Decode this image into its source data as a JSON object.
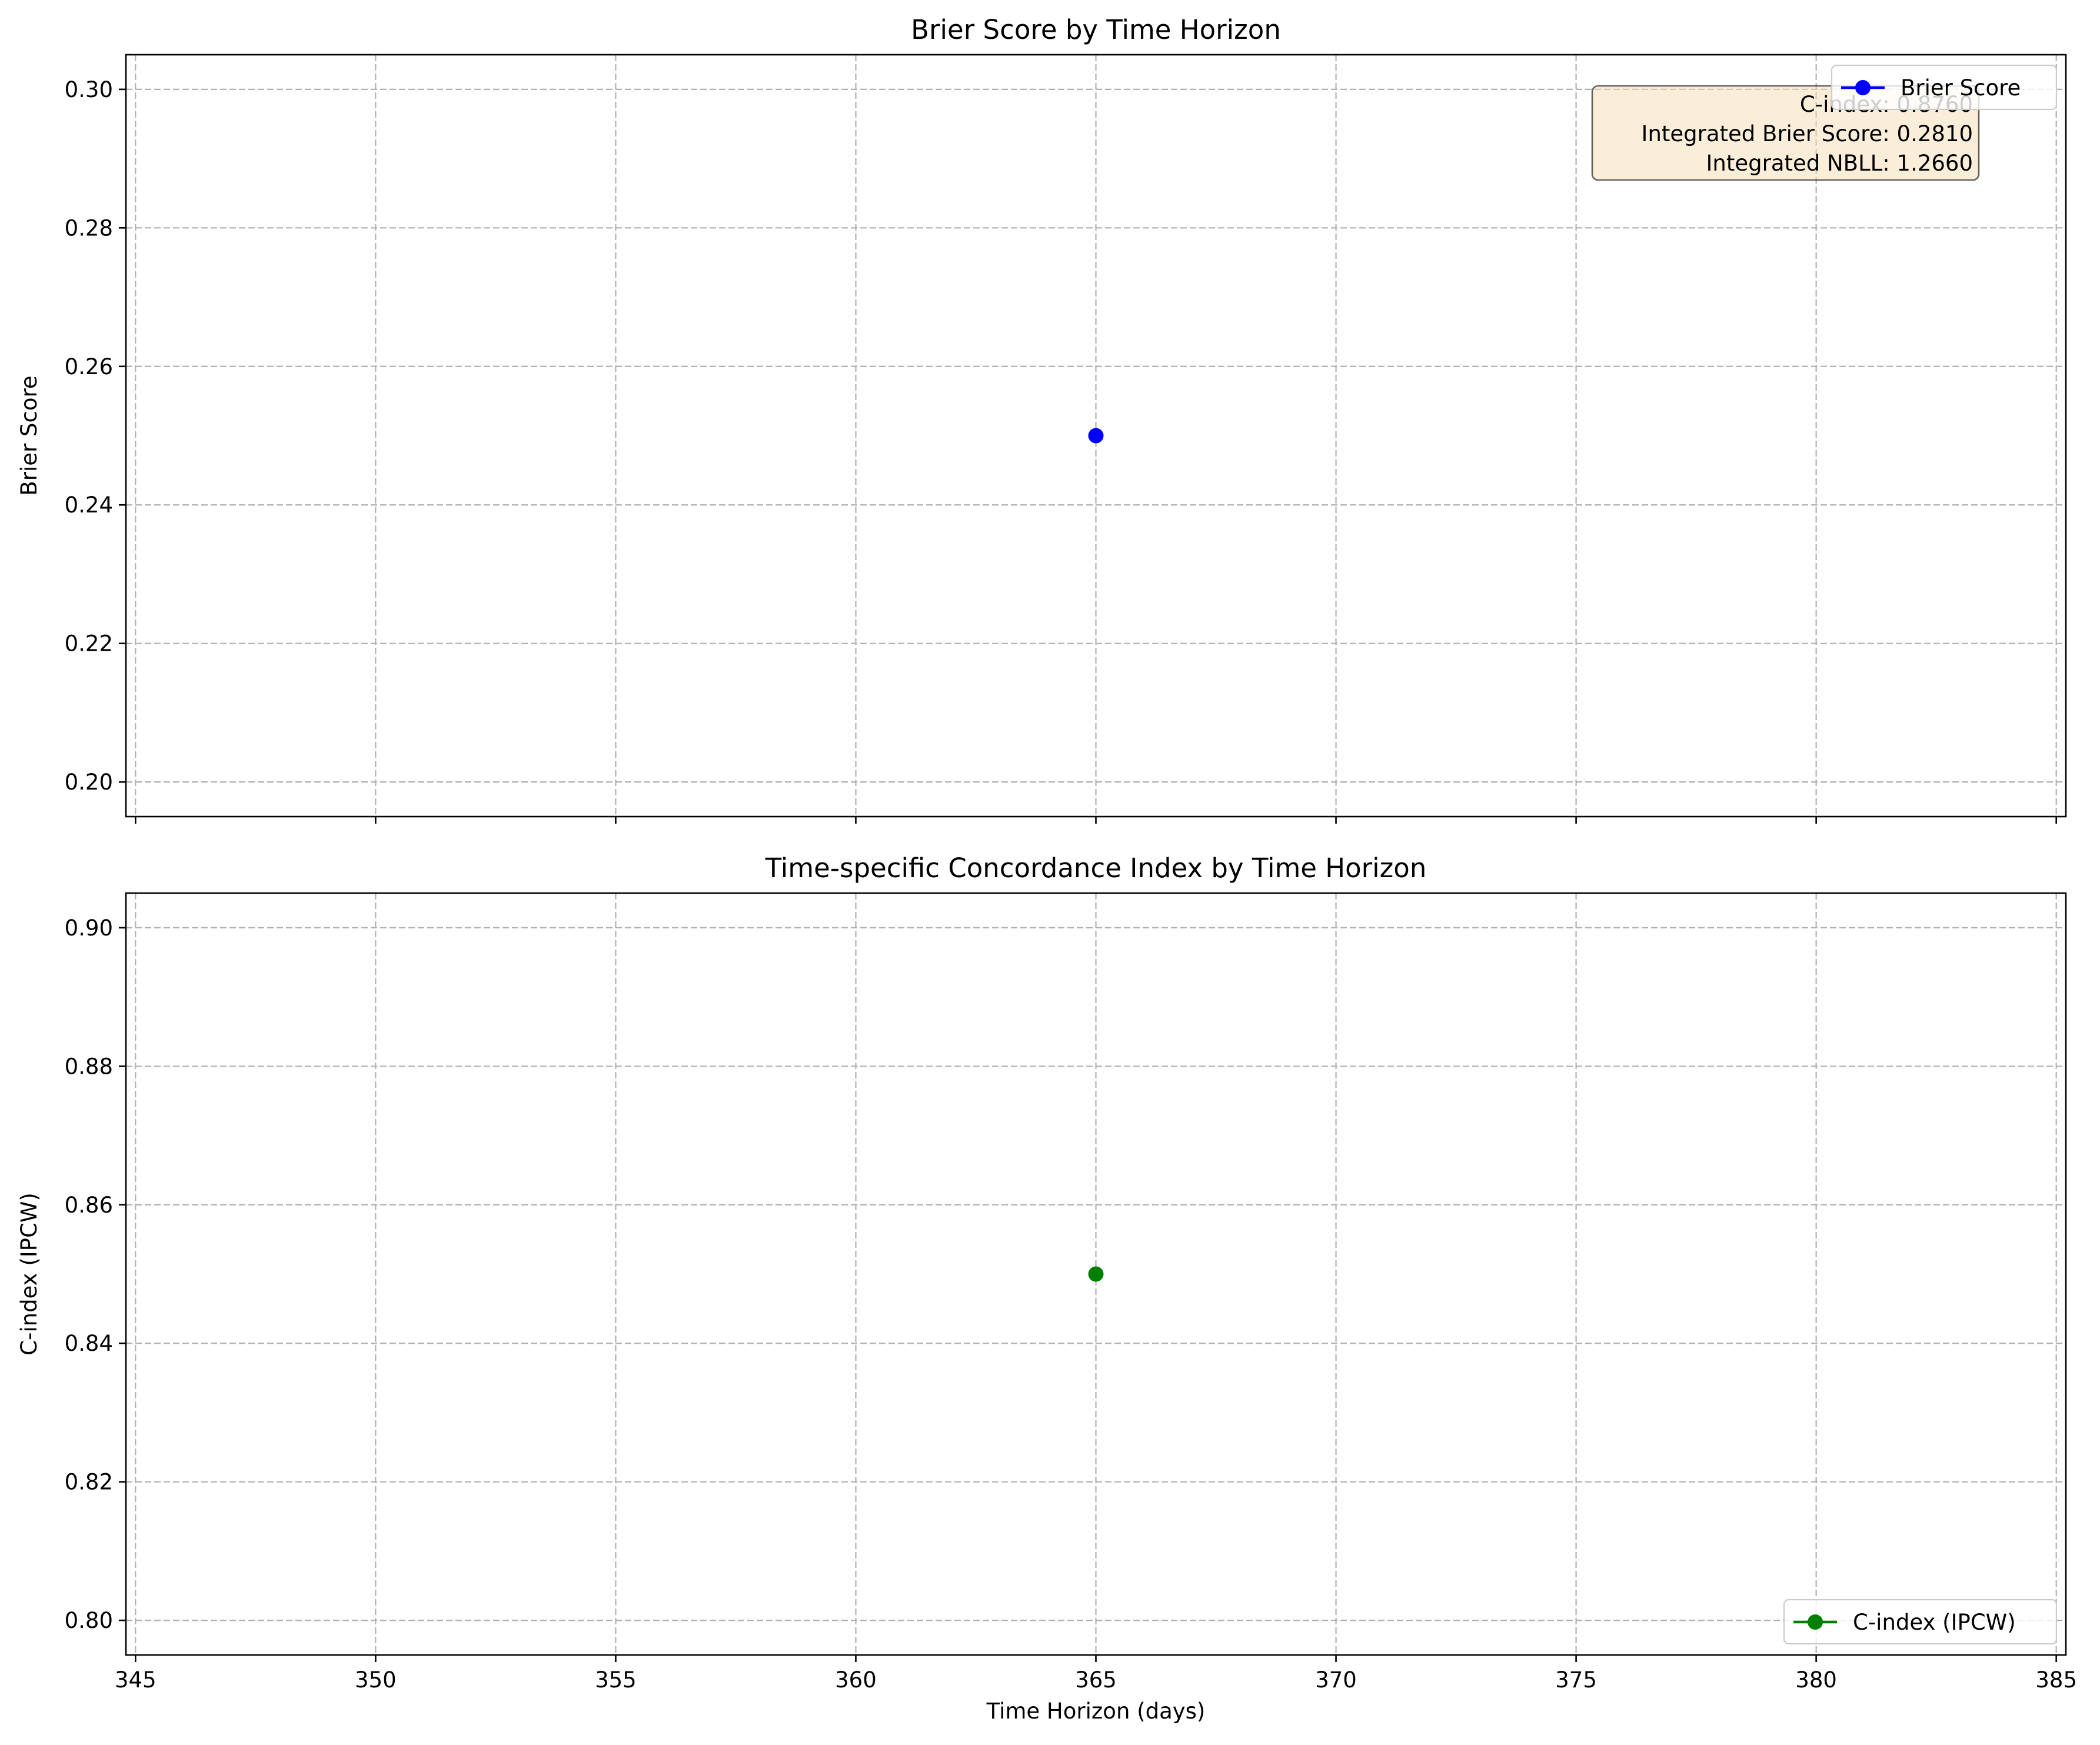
{
  "chart_data": [
    {
      "type": "line",
      "title": "Brier Score by Time Horizon",
      "xlabel": "",
      "ylabel": "Brier Score",
      "xlim": [
        344.8,
        385.2
      ],
      "ylim": [
        0.195,
        0.305
      ],
      "x_ticks": [
        "345",
        "350",
        "355",
        "360",
        "365",
        "370",
        "375",
        "380",
        "385"
      ],
      "x_tick_values": [
        345,
        350,
        355,
        360,
        365,
        370,
        375,
        380,
        385
      ],
      "x_tick_labels_shown": false,
      "y_ticks": [
        "0.20",
        "0.22",
        "0.24",
        "0.26",
        "0.28",
        "0.30"
      ],
      "y_tick_values": [
        0.2,
        0.22,
        0.24,
        0.26,
        0.28,
        0.3
      ],
      "grid": true,
      "legend": {
        "position": "top-right"
      },
      "series": [
        {
          "name": "Brier Score",
          "color": "#0000ff",
          "x": [
            365
          ],
          "y": [
            0.25
          ]
        }
      ],
      "annotation": {
        "position": "top-right",
        "lines": [
          "C-index: 0.8760",
          "Integrated Brier Score: 0.2810",
          "Integrated NBLL: 1.2660"
        ]
      }
    },
    {
      "type": "line",
      "title": "Time-specific Concordance Index by Time Horizon",
      "xlabel": "Time Horizon (days)",
      "ylabel": "C-index (IPCW)",
      "xlim": [
        344.8,
        385.2
      ],
      "ylim": [
        0.795,
        0.905
      ],
      "x_ticks": [
        "345",
        "350",
        "355",
        "360",
        "365",
        "370",
        "375",
        "380",
        "385"
      ],
      "x_tick_values": [
        345,
        350,
        355,
        360,
        365,
        370,
        375,
        380,
        385
      ],
      "x_tick_labels_shown": true,
      "y_ticks": [
        "0.80",
        "0.82",
        "0.84",
        "0.86",
        "0.88",
        "0.90"
      ],
      "y_tick_values": [
        0.8,
        0.82,
        0.84,
        0.86,
        0.88,
        0.9
      ],
      "grid": true,
      "legend": {
        "position": "lower-right"
      },
      "series": [
        {
          "name": "C-index (IPCW)",
          "color": "#008000",
          "x": [
            365
          ],
          "y": [
            0.85
          ]
        }
      ]
    }
  ]
}
